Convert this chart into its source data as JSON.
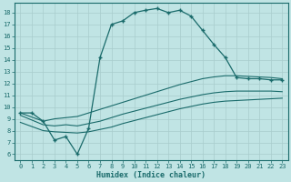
{
  "xlabel": "Humidex (Indice chaleur)",
  "xlim": [
    -0.5,
    23.5
  ],
  "ylim": [
    5.5,
    18.8
  ],
  "xticks": [
    0,
    1,
    2,
    3,
    4,
    5,
    6,
    7,
    8,
    9,
    10,
    11,
    12,
    13,
    14,
    15,
    16,
    17,
    18,
    19,
    20,
    21,
    22,
    23
  ],
  "yticks": [
    6,
    7,
    8,
    9,
    10,
    11,
    12,
    13,
    14,
    15,
    16,
    17,
    18
  ],
  "bg_color": "#c0e4e4",
  "line_color": "#1a6b6b",
  "grid_color": "#a8cccc",
  "line1_x": [
    0,
    1,
    2,
    3,
    4,
    5,
    6,
    7,
    8,
    9,
    10,
    11,
    12,
    13,
    14,
    15,
    16,
    17,
    18,
    19,
    20,
    21,
    22,
    23
  ],
  "line1_y": [
    9.5,
    9.5,
    8.8,
    7.2,
    7.5,
    6.0,
    8.2,
    14.2,
    17.0,
    17.3,
    18.0,
    18.2,
    18.35,
    18.0,
    18.2,
    17.7,
    16.5,
    15.3,
    14.2,
    12.5,
    12.4,
    12.4,
    12.3,
    12.3
  ],
  "line2_x": [
    0,
    2,
    3,
    4,
    5,
    6,
    7,
    8,
    9,
    10,
    11,
    12,
    13,
    14,
    15,
    16,
    17,
    18,
    19,
    20,
    21,
    22,
    23
  ],
  "line2_y": [
    9.5,
    8.8,
    9.0,
    9.1,
    9.2,
    9.5,
    9.8,
    10.1,
    10.4,
    10.7,
    11.0,
    11.3,
    11.6,
    11.9,
    12.15,
    12.4,
    12.55,
    12.65,
    12.65,
    12.6,
    12.55,
    12.5,
    12.4
  ],
  "line3_x": [
    0,
    2,
    3,
    4,
    5,
    6,
    7,
    8,
    9,
    10,
    11,
    12,
    13,
    14,
    15,
    16,
    17,
    18,
    19,
    20,
    21,
    22,
    23
  ],
  "line3_y": [
    9.3,
    8.5,
    8.4,
    8.5,
    8.4,
    8.6,
    8.8,
    9.1,
    9.4,
    9.65,
    9.9,
    10.15,
    10.4,
    10.65,
    10.85,
    11.05,
    11.2,
    11.3,
    11.35,
    11.35,
    11.35,
    11.35,
    11.3
  ],
  "line4_x": [
    0,
    2,
    3,
    4,
    5,
    6,
    7,
    8,
    9,
    10,
    11,
    12,
    13,
    14,
    15,
    16,
    17,
    18,
    19,
    20,
    21,
    22,
    23
  ],
  "line4_y": [
    8.7,
    8.0,
    7.9,
    7.85,
    7.8,
    7.9,
    8.1,
    8.3,
    8.6,
    8.85,
    9.1,
    9.35,
    9.6,
    9.85,
    10.05,
    10.25,
    10.4,
    10.5,
    10.55,
    10.6,
    10.65,
    10.7,
    10.75
  ]
}
